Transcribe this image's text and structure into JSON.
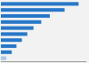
{
  "chart_data": {
    "type": "bar",
    "orientation": "horizontal",
    "values": [
      100,
      82,
      63,
      52,
      42,
      34,
      27,
      20,
      14,
      7
    ],
    "colors": [
      "#2878c8",
      "#2878c8",
      "#2878c8",
      "#2878c8",
      "#2878c8",
      "#2878c8",
      "#2878c8",
      "#2878c8",
      "#2878c8",
      "#a8c8e8"
    ],
    "xlim": [
      0,
      110
    ],
    "tick_labels": false
  }
}
